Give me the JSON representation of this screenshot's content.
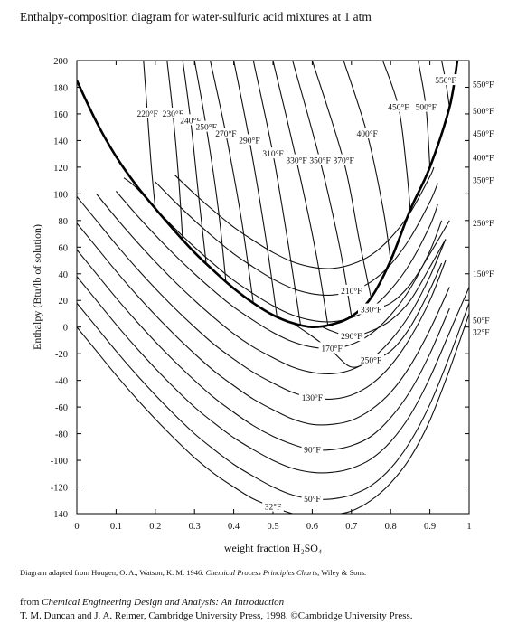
{
  "header": {
    "title": "Enthalpy-composition diagram for water-sulfuric acid mixtures at 1 atm"
  },
  "chart_data": {
    "type": "line",
    "title": "Enthalpy-composition diagram for water-sulfuric acid mixtures at 1 atm",
    "xlabel": "weight fraction H₂SO₄",
    "ylabel": "Enthalpy (Btu/lb of solution)",
    "xlim": [
      0,
      1
    ],
    "ylim": [
      -140,
      200
    ],
    "x_ticks": [
      0,
      0.1,
      0.2,
      0.3,
      0.4,
      0.5,
      0.6,
      0.7,
      0.8,
      0.9,
      1
    ],
    "x_tick_labels": [
      "0",
      "0.1",
      "0.2",
      "0.3",
      "0.4",
      "0.5",
      "0.6",
      "0.7",
      "0.8",
      "0.9",
      "1"
    ],
    "y_ticks": [
      200,
      180,
      160,
      140,
      120,
      100,
      80,
      60,
      40,
      20,
      0,
      -20,
      -40,
      -60,
      -80,
      -100,
      -120,
      -140
    ],
    "y_tick_labels": [
      "200",
      "180",
      "160",
      "140",
      "120",
      "100",
      "80",
      "60",
      "40",
      "20",
      "0",
      "-20",
      "-40",
      "-60",
      "-80",
      "-100",
      "-120",
      "-140"
    ],
    "grid": false,
    "boundary_curve": {
      "x": [
        0,
        0.05,
        0.1,
        0.15,
        0.2,
        0.25,
        0.3,
        0.35,
        0.4,
        0.45,
        0.5,
        0.55,
        0.6,
        0.65,
        0.7,
        0.75,
        0.8,
        0.85,
        0.9,
        0.95,
        0.97
      ],
      "y": [
        185,
        154,
        128,
        107,
        89,
        72,
        56,
        42,
        29,
        18,
        9,
        3,
        0,
        2,
        8,
        22,
        50,
        88,
        120,
        165,
        200
      ]
    },
    "liquid_isotherms": [
      {
        "label": "32°F",
        "x": [
          0,
          0.05,
          0.1,
          0.15,
          0.2,
          0.25,
          0.3,
          0.35,
          0.4,
          0.45,
          0.5,
          0.55,
          0.6,
          0.65,
          0.7,
          0.75,
          0.8,
          0.85,
          0.9,
          0.95,
          1
        ],
        "y": [
          0,
          -18,
          -36,
          -53,
          -69,
          -84,
          -98,
          -110,
          -120,
          -129,
          -135,
          -140,
          -142,
          -141,
          -138,
          -130,
          -117,
          -98,
          -70,
          -32,
          10
        ]
      },
      {
        "label": "50°F",
        "x": [
          0,
          0.05,
          0.1,
          0.15,
          0.2,
          0.25,
          0.3,
          0.35,
          0.4,
          0.45,
          0.5,
          0.55,
          0.6,
          0.65,
          0.7,
          0.75,
          0.8,
          0.85,
          0.9,
          0.95,
          1
        ],
        "y": [
          18,
          0,
          -18,
          -35,
          -51,
          -66,
          -80,
          -92,
          -103,
          -112,
          -120,
          -126,
          -129,
          -129,
          -126,
          -119,
          -106,
          -86,
          -58,
          -22,
          18
        ]
      },
      {
        "label": "",
        "x": [
          0,
          0.05,
          0.1,
          0.15,
          0.2,
          0.25,
          0.3,
          0.35,
          0.4,
          0.45,
          0.5,
          0.55,
          0.6,
          0.65,
          0.7,
          0.75,
          0.8,
          0.85,
          0.9,
          0.95,
          1
        ],
        "y": [
          38,
          20,
          2,
          -15,
          -31,
          -46,
          -60,
          -72,
          -83,
          -92,
          -100,
          -106,
          -109,
          -109,
          -106,
          -99,
          -86,
          -66,
          -38,
          -4,
          30
        ]
      },
      {
        "label": "90°F",
        "x": [
          0,
          0.05,
          0.1,
          0.15,
          0.2,
          0.25,
          0.3,
          0.35,
          0.4,
          0.45,
          0.5,
          0.55,
          0.6,
          0.65,
          0.7,
          0.75,
          0.8,
          0.85,
          0.9,
          0.95
        ],
        "y": [
          58,
          40,
          22,
          5,
          -11,
          -26,
          -40,
          -53,
          -64,
          -74,
          -82,
          -88,
          -92,
          -92,
          -89,
          -82,
          -68,
          -48,
          -20,
          14
        ]
      },
      {
        "label": "",
        "x": [
          0,
          0.05,
          0.1,
          0.15,
          0.2,
          0.25,
          0.3,
          0.35,
          0.4,
          0.45,
          0.5,
          0.55,
          0.6,
          0.65,
          0.7,
          0.75,
          0.8,
          0.85,
          0.9,
          0.95
        ],
        "y": [
          78,
          60,
          42,
          25,
          9,
          -6,
          -20,
          -33,
          -44,
          -54,
          -62,
          -69,
          -73,
          -73,
          -70,
          -62,
          -49,
          -29,
          -2,
          30
        ]
      },
      {
        "label": "130°F",
        "x": [
          0,
          0.05,
          0.1,
          0.15,
          0.2,
          0.25,
          0.3,
          0.35,
          0.4,
          0.45,
          0.5,
          0.55,
          0.6,
          0.65,
          0.7,
          0.75,
          0.8,
          0.85,
          0.9,
          0.94
        ],
        "y": [
          98,
          80,
          62,
          45,
          29,
          14,
          0,
          -13,
          -24,
          -34,
          -42,
          -49,
          -53,
          -54,
          -51,
          -43,
          -29,
          -8,
          20,
          50
        ]
      },
      {
        "label": "",
        "x": [
          0.05,
          0.1,
          0.15,
          0.2,
          0.25,
          0.3,
          0.35,
          0.4,
          0.45,
          0.5,
          0.55,
          0.6,
          0.65,
          0.7,
          0.75,
          0.8,
          0.85,
          0.9,
          0.94
        ],
        "y": [
          100,
          82,
          65,
          49,
          34,
          20,
          7,
          -5,
          -15,
          -23,
          -30,
          -34,
          -35,
          -32,
          -24,
          -10,
          10,
          38,
          66
        ]
      },
      {
        "label": "170°F",
        "x": [
          0.1,
          0.15,
          0.2,
          0.25,
          0.3,
          0.35,
          0.4,
          0.45,
          0.5,
          0.55,
          0.6,
          0.65,
          0.7,
          0.75,
          0.8,
          0.85,
          0.9,
          0.93
        ],
        "y": [
          102,
          85,
          69,
          54,
          40,
          27,
          15,
          5,
          -4,
          -11,
          -15,
          -16,
          -13,
          -5,
          9,
          29,
          57,
          80
        ]
      },
      {
        "label": "",
        "x": [
          0.12,
          0.15,
          0.2,
          0.25,
          0.3,
          0.35,
          0.4,
          0.45,
          0.5,
          0.55,
          0.6,
          0.65,
          0.7,
          0.75,
          0.8,
          0.85,
          0.9,
          0.92
        ],
        "y": [
          112,
          105,
          89,
          74,
          60,
          47,
          35,
          25,
          16,
          9,
          5,
          4,
          7,
          14,
          28,
          48,
          76,
          92
        ]
      },
      {
        "label": "210°F",
        "x": [
          0.2,
          0.25,
          0.3,
          0.35,
          0.4,
          0.45,
          0.5,
          0.55,
          0.6,
          0.65,
          0.7,
          0.75,
          0.8,
          0.85,
          0.9,
          0.92
        ],
        "y": [
          109,
          94,
          80,
          67,
          55,
          45,
          36,
          29,
          25,
          24,
          27,
          34,
          47,
          67,
          94,
          108
        ]
      },
      {
        "label": "",
        "x": [
          0.25,
          0.3,
          0.35,
          0.4,
          0.45,
          0.5,
          0.55,
          0.6,
          0.65,
          0.7,
          0.75,
          0.8,
          0.85,
          0.9,
          0.91
        ],
        "y": [
          114,
          100,
          87,
          75,
          65,
          56,
          49,
          45,
          44,
          47,
          54,
          67,
          86,
          113,
          120
        ]
      },
      {
        "label": "250°F",
        "x": [
          0.55,
          0.6,
          0.65,
          0.7,
          0.75,
          0.8,
          0.85,
          0.9,
          0.93
        ],
        "y": [
          3,
          -7,
          -18,
          -30,
          -25,
          -18,
          0,
          28,
          48
        ]
      },
      {
        "label": "290°F",
        "x": [
          0.62,
          0.65,
          0.7,
          0.75,
          0.8,
          0.85,
          0.9,
          0.94
        ],
        "y": [
          1,
          -3,
          -7,
          -3,
          5,
          20,
          45,
          66
        ]
      },
      {
        "label": "330°F",
        "x": [
          0.72,
          0.75,
          0.8,
          0.85,
          0.9,
          0.95
        ],
        "y": [
          12,
          13,
          18,
          32,
          55,
          80
        ]
      }
    ],
    "vapor_isotherms": [
      {
        "label": "220°F",
        "x": [
          0.2,
          0.19,
          0.18,
          0.17
        ],
        "y": [
          89,
          120,
          160,
          200
        ]
      },
      {
        "label": "230°F",
        "x": [
          0.27,
          0.26,
          0.245,
          0.23
        ],
        "y": [
          64,
          110,
          160,
          200
        ]
      },
      {
        "label": "240°F",
        "x": [
          0.33,
          0.31,
          0.29,
          0.27
        ],
        "y": [
          47,
          100,
          155,
          200
        ]
      },
      {
        "label": "250°F",
        "x": [
          0.38,
          0.36,
          0.33,
          0.3
        ],
        "y": [
          34,
          90,
          150,
          200
        ]
      },
      {
        "label": "270°F",
        "x": [
          0.45,
          0.42,
          0.38,
          0.34
        ],
        "y": [
          18,
          80,
          145,
          200
        ]
      },
      {
        "label": "290°F",
        "x": [
          0.51,
          0.48,
          0.44,
          0.4
        ],
        "y": [
          8,
          70,
          140,
          200
        ]
      },
      {
        "label": "310°F",
        "x": [
          0.57,
          0.54,
          0.5,
          0.45
        ],
        "y": [
          2,
          60,
          130,
          200
        ]
      },
      {
        "label": "330°F",
        "x": [
          0.64,
          0.61,
          0.56,
          0.5
        ],
        "y": [
          1,
          55,
          125,
          200
        ]
      },
      {
        "label": "350°F",
        "x": [
          0.7,
          0.67,
          0.62,
          0.55
        ],
        "y": [
          8,
          60,
          125,
          200
        ]
      },
      {
        "label": "370°F",
        "x": [
          0.75,
          0.72,
          0.68,
          0.6
        ],
        "y": [
          22,
          65,
          125,
          200
        ]
      },
      {
        "label": "400°F",
        "x": [
          0.8,
          0.78,
          0.74,
          0.68
        ],
        "y": [
          50,
          90,
          145,
          200
        ]
      },
      {
        "label": "450°F",
        "x": [
          0.85,
          0.84,
          0.82,
          0.78
        ],
        "y": [
          88,
          120,
          165,
          200
        ]
      },
      {
        "label": "500°F",
        "x": [
          0.9,
          0.89,
          0.87
        ],
        "y": [
          120,
          165,
          200
        ]
      },
      {
        "label": "550°F",
        "x": [
          0.95,
          0.94,
          0.93
        ],
        "y": [
          165,
          185,
          200
        ]
      }
    ],
    "right_edge_labels": [
      {
        "label": "550°F",
        "y": 182
      },
      {
        "label": "500°F",
        "y": 162
      },
      {
        "label": "450°F",
        "y": 145
      },
      {
        "label": "400°F",
        "y": 127
      },
      {
        "label": "350°F",
        "y": 110
      },
      {
        "label": "250°F",
        "y": 78
      },
      {
        "label": "150°F",
        "y": 40
      },
      {
        "label": "50°F",
        "y": 5
      },
      {
        "label": "32°F",
        "y": -4
      }
    ]
  },
  "footer": {
    "credit_prefix": "Diagram adapted from Hougen, O. A., Watson, K. M. 1946. ",
    "credit_title": "Chemical Process Principles Charts",
    "credit_suffix": ", Wiley & Sons.",
    "source_prefix": "from ",
    "source_title": "Chemical Engineering Design and Analysis:  An Introduction",
    "source_line2": "T. M. Duncan and J. A. Reimer, Cambridge University Press, 1998. ©Cambridge University Press."
  }
}
